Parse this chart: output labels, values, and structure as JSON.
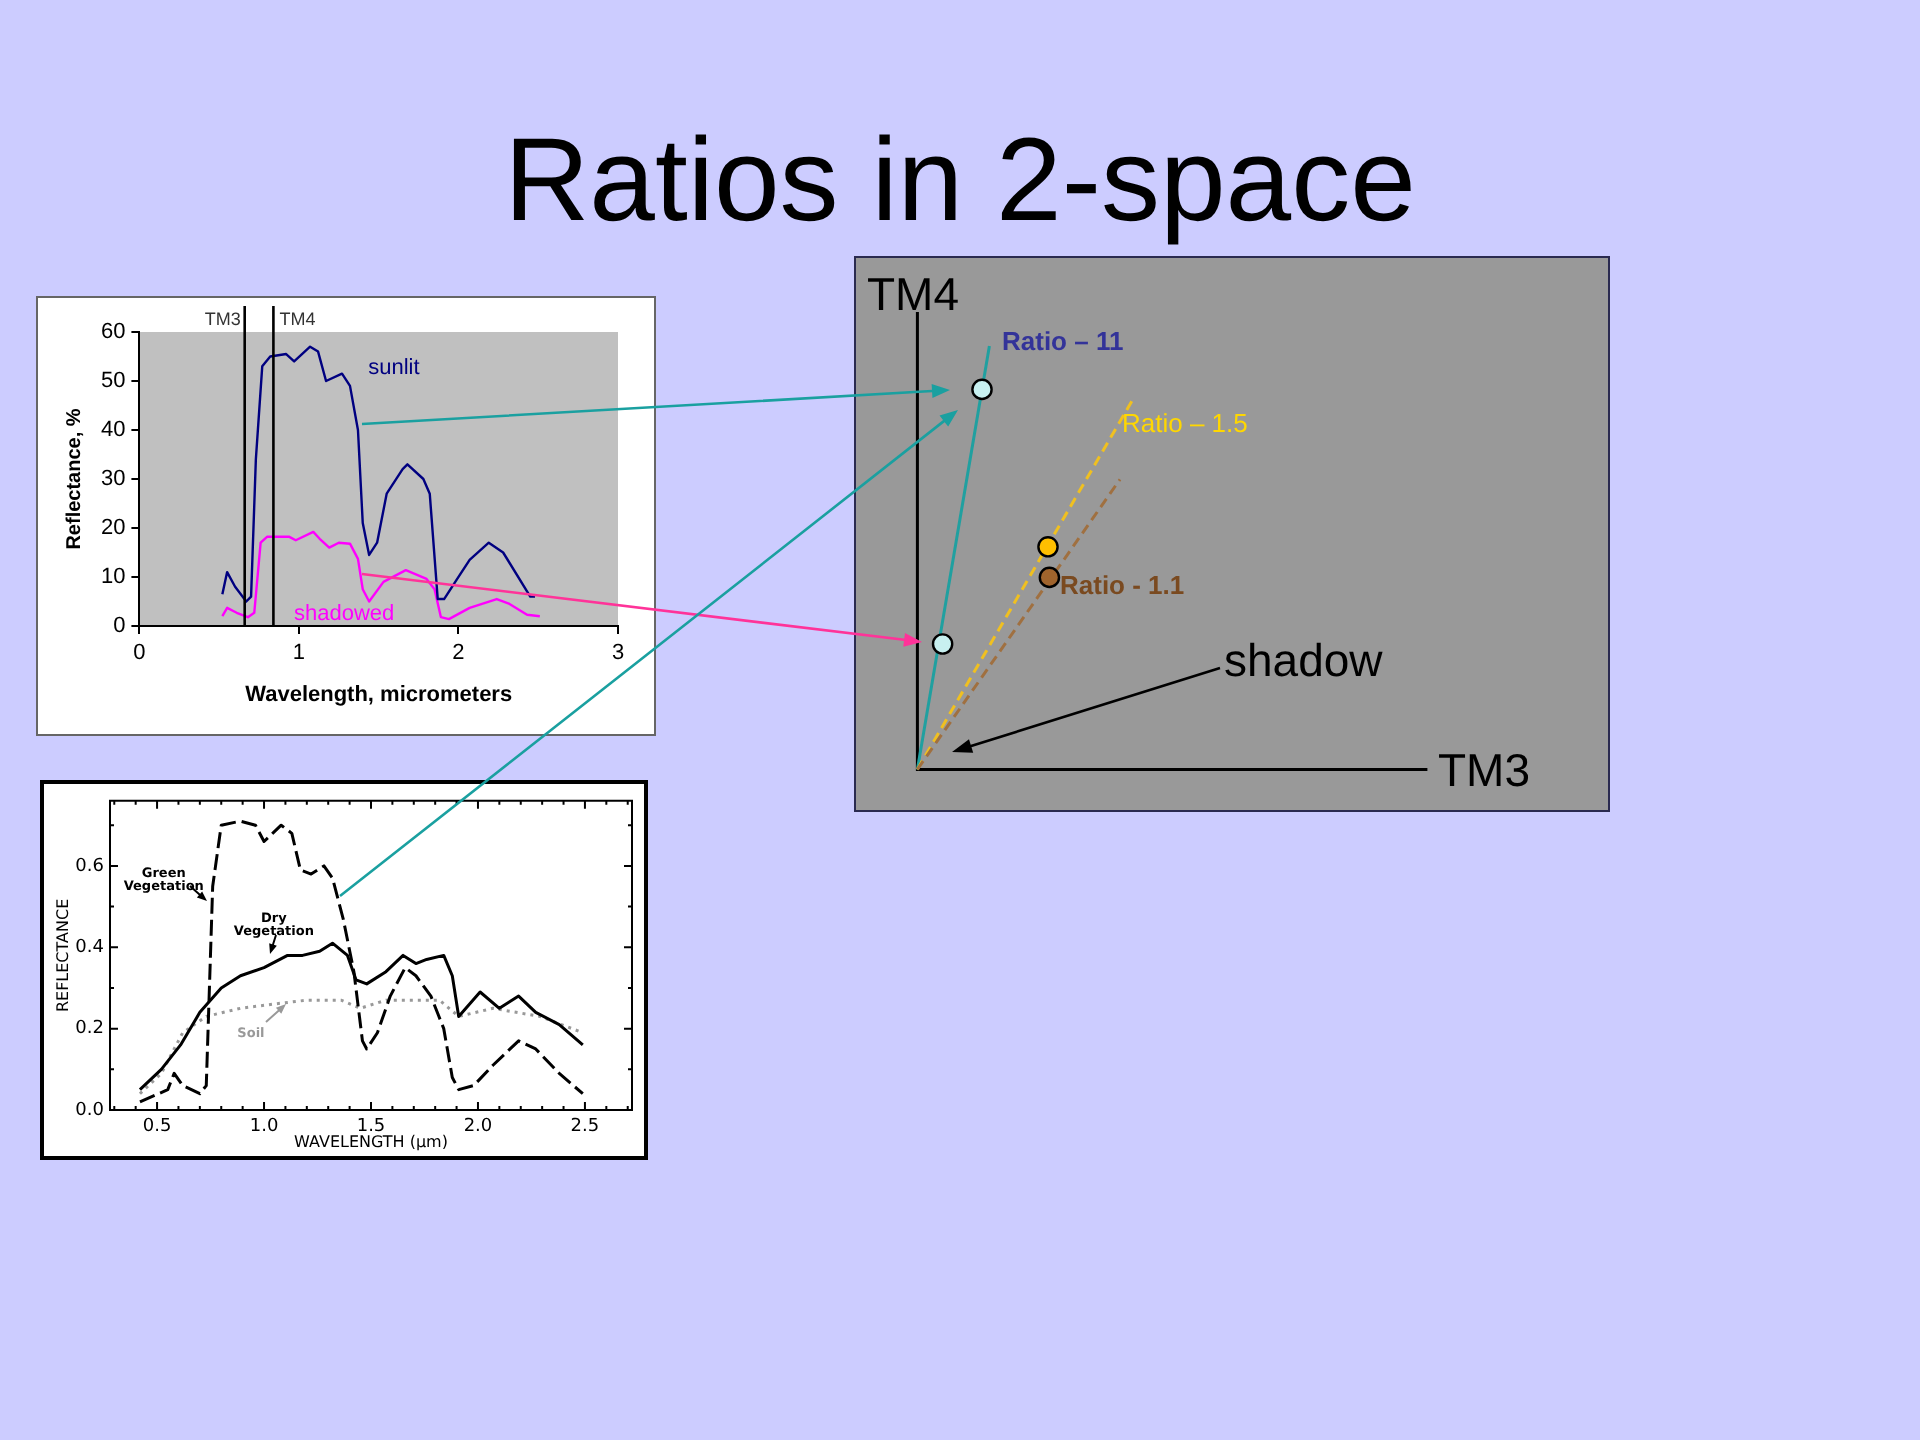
{
  "chart_data": [
    {
      "type": "line",
      "xlabel": "Wavelength, micrometers",
      "ylabel": "Reflectance, %",
      "xlim": [
        0,
        3
      ],
      "xticks": [
        0,
        1,
        2,
        3
      ],
      "ylim": [
        0,
        60
      ],
      "yticks": [
        0,
        10,
        20,
        30,
        40,
        50,
        60
      ],
      "series": [
        {
          "name": "sunlit",
          "color": "#000080",
          "x": [
            0.52,
            0.55,
            0.6,
            0.67,
            0.7,
            0.73,
            0.77,
            0.82,
            0.92,
            0.97,
            1.07,
            1.12,
            1.17,
            1.27,
            1.32,
            1.37,
            1.4,
            1.44,
            1.49,
            1.55,
            1.65,
            1.68,
            1.78,
            1.82,
            1.87,
            1.91,
            1.99,
            2.07,
            2.19,
            2.28,
            2.45,
            2.48
          ],
          "values": [
            6.5,
            11,
            8,
            5,
            6,
            34,
            53,
            55,
            55.5,
            54,
            57,
            56,
            50,
            51.5,
            49,
            40,
            21,
            14.5,
            17,
            27,
            32,
            33,
            30,
            27,
            5.5,
            5.5,
            9.5,
            13.5,
            17,
            15,
            6,
            6
          ]
        },
        {
          "name": "shadowed",
          "color": "#ff00ff",
          "x": [
            0.52,
            0.55,
            0.61,
            0.68,
            0.72,
            0.76,
            0.8,
            0.94,
            0.98,
            1.09,
            1.13,
            1.19,
            1.25,
            1.32,
            1.37,
            1.4,
            1.44,
            1.53,
            1.67,
            1.8,
            1.85,
            1.89,
            1.94,
            2.07,
            2.24,
            2.32,
            2.43,
            2.51
          ],
          "values": [
            2,
            3.7,
            2.7,
            1.8,
            2.7,
            17,
            18.2,
            18.2,
            17.5,
            19.2,
            17.8,
            16,
            17,
            16.8,
            13.7,
            7.5,
            5,
            9,
            11.4,
            9.6,
            7.5,
            1.8,
            1.4,
            3.7,
            5.5,
            4.5,
            2.3,
            2
          ]
        }
      ],
      "ref_lines": [
        {
          "axis": "x",
          "value": 0.66,
          "label": "TM3",
          "color": "#000000"
        },
        {
          "axis": "x",
          "value": 0.84,
          "label": "TM4",
          "color": "#000000"
        }
      ]
    },
    {
      "type": "other",
      "title": "Ratios in 2-space",
      "xlabel": "TM3",
      "ylabel": "TM4",
      "annotations": [
        "Ratio – 11",
        "Ratio – 1.5",
        "Ratio - 1.1",
        "shadow"
      ]
    },
    {
      "type": "line",
      "xlabel": "WAVELENGTH (μm)",
      "ylabel": "REFLECTANCE",
      "xlim": [
        0.28,
        2.72
      ],
      "xticks": [
        {
          "value": 0.3,
          "label": null
        },
        {
          "value": 0.4,
          "label": null
        },
        0.5,
        {
          "value": 0.6,
          "label": null
        },
        {
          "value": 0.7,
          "label": null
        },
        {
          "value": 0.8,
          "label": null
        },
        {
          "value": 0.9,
          "label": null
        },
        {
          "value": 1,
          "label": "1.0"
        },
        {
          "value": 1.1,
          "label": null
        },
        {
          "value": 1.2,
          "label": null
        },
        {
          "value": 1.3,
          "label": null
        },
        {
          "value": 1.4,
          "label": null
        },
        1.5,
        {
          "value": 1.6,
          "label": null
        },
        {
          "value": 1.7,
          "label": null
        },
        {
          "value": 1.8,
          "label": null
        },
        {
          "value": 1.9,
          "label": null
        },
        {
          "value": 2,
          "label": "2.0"
        },
        {
          "value": 2.1,
          "label": null
        },
        {
          "value": 2.2,
          "label": null
        },
        {
          "value": 2.3,
          "label": null
        },
        {
          "value": 2.4,
          "label": null
        },
        2.5,
        {
          "value": 2.6,
          "label": null
        },
        {
          "value": 2.7,
          "label": null
        }
      ],
      "ylim": [
        0,
        0.76
      ],
      "yticks": [
        {
          "value": 0,
          "label": "0.0"
        },
        {
          "value": 0.1,
          "label": null
        },
        0.2,
        {
          "value": 0.3,
          "label": null
        },
        0.4,
        {
          "value": 0.5,
          "label": null
        },
        0.6,
        {
          "value": 0.7,
          "label": null
        }
      ],
      "series": [
        {
          "name": "Green Vegetation",
          "color": "#000000",
          "line_style": "dashed",
          "x": [
            0.42,
            0.55,
            0.58,
            0.62,
            0.7,
            0.73,
            0.76,
            0.8,
            0.89,
            0.96,
            1.0,
            1.04,
            1.08,
            1.13,
            1.17,
            1.22,
            1.28,
            1.32,
            1.37,
            1.42,
            1.46,
            1.48,
            1.53,
            1.59,
            1.66,
            1.71,
            1.78,
            1.84,
            1.88,
            1.91,
            1.98,
            2.07,
            2.19,
            2.27,
            2.38,
            2.49
          ],
          "values": [
            0.02,
            0.05,
            0.09,
            0.06,
            0.04,
            0.06,
            0.55,
            0.7,
            0.71,
            0.7,
            0.66,
            0.68,
            0.7,
            0.68,
            0.59,
            0.58,
            0.6,
            0.57,
            0.47,
            0.34,
            0.17,
            0.15,
            0.19,
            0.28,
            0.35,
            0.33,
            0.28,
            0.2,
            0.08,
            0.05,
            0.06,
            0.11,
            0.17,
            0.15,
            0.09,
            0.04
          ]
        },
        {
          "name": "Dry Vegetation",
          "color": "#000000",
          "line_style": "solid",
          "x": [
            0.42,
            0.52,
            0.61,
            0.7,
            0.8,
            0.89,
            1.0,
            1.11,
            1.18,
            1.26,
            1.32,
            1.39,
            1.43,
            1.48,
            1.57,
            1.65,
            1.71,
            1.76,
            1.84,
            1.88,
            1.91,
            2.01,
            2.1,
            2.19,
            2.27,
            2.38,
            2.49
          ],
          "values": [
            0.05,
            0.1,
            0.16,
            0.24,
            0.3,
            0.33,
            0.35,
            0.38,
            0.38,
            0.39,
            0.41,
            0.38,
            0.32,
            0.31,
            0.34,
            0.38,
            0.36,
            0.37,
            0.38,
            0.33,
            0.23,
            0.29,
            0.25,
            0.28,
            0.24,
            0.21,
            0.16
          ]
        },
        {
          "name": "Soil",
          "color": "#999999",
          "line_style": "dotted",
          "x": [
            0.42,
            0.52,
            0.62,
            0.73,
            0.89,
            1.04,
            1.2,
            1.36,
            1.45,
            1.57,
            1.82,
            1.91,
            2.07,
            2.29,
            2.49
          ],
          "values": [
            0.04,
            0.09,
            0.19,
            0.23,
            0.25,
            0.26,
            0.27,
            0.27,
            0.25,
            0.27,
            0.27,
            0.23,
            0.25,
            0.23,
            0.19
          ]
        }
      ]
    }
  ]
}
